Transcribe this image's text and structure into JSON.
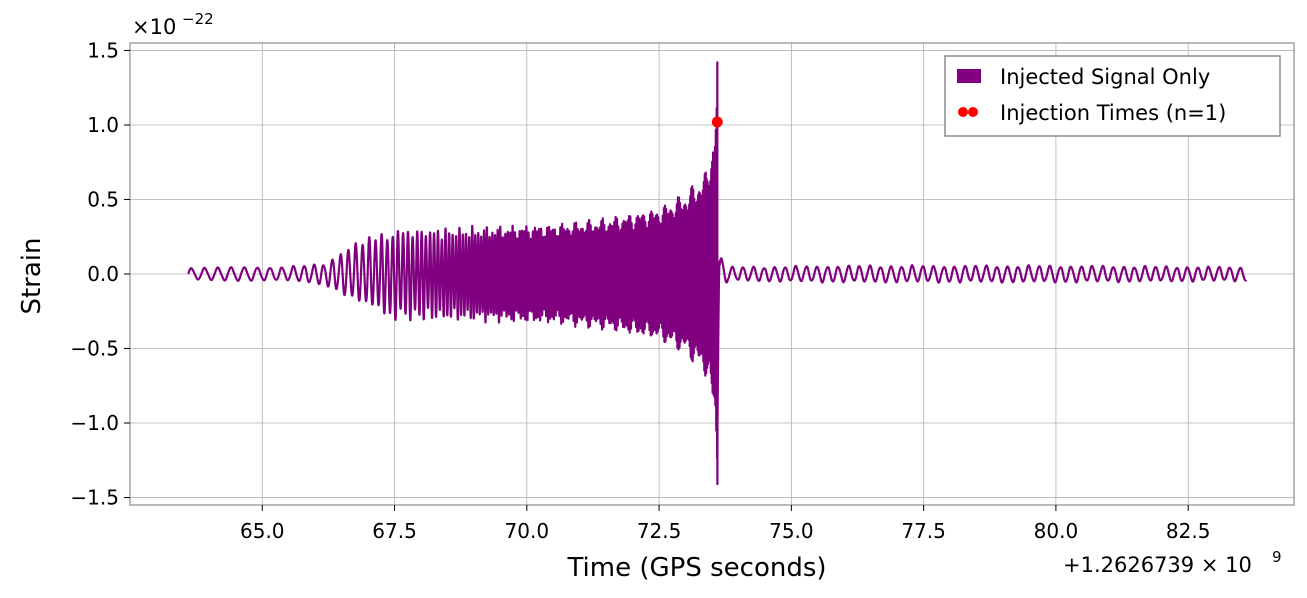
{
  "chart_data": {
    "type": "line",
    "xlabel": "Time (GPS seconds)",
    "ylabel": "Strain",
    "x_offset_label": "+1.2626739",
    "x_offset_mult": "× 10",
    "x_offset_exp": "9",
    "y_scale_label": "×10",
    "y_scale_exp": "−22",
    "xlim": [
      62.5,
      84.5
    ],
    "ylim": [
      -1.55,
      1.55
    ],
    "x_ticks": [
      65.0,
      67.5,
      70.0,
      72.5,
      75.0,
      77.5,
      80.0,
      82.5
    ],
    "x_tick_labels": [
      "65.0",
      "67.5",
      "70.0",
      "72.5",
      "75.0",
      "77.5",
      "80.0",
      "82.5"
    ],
    "y_ticks": [
      1.5,
      1.0,
      0.5,
      0.0,
      -0.5,
      -1.0,
      -1.5
    ],
    "y_tick_labels": [
      "1.5",
      "1.0",
      "0.5",
      "0.0",
      "−0.5",
      "−1.0",
      "−1.5"
    ],
    "grid": true,
    "legend_position": "top-right",
    "series": [
      {
        "name": "Injected Signal Only",
        "color": "#800080",
        "kind": "line",
        "x_start": 63.6,
        "x_end": 83.6,
        "peak_x": 73.6,
        "peak_max": 1.42,
        "peak_min": -1.41,
        "envelope": [
          {
            "x": 63.6,
            "amp": 0.04
          },
          {
            "x": 64.5,
            "amp": 0.05
          },
          {
            "x": 65.5,
            "amp": 0.05
          },
          {
            "x": 66.2,
            "amp": 0.08
          },
          {
            "x": 66.7,
            "amp": 0.2
          },
          {
            "x": 67.5,
            "amp": 0.32
          },
          {
            "x": 68.5,
            "amp": 0.32
          },
          {
            "x": 69.5,
            "amp": 0.33
          },
          {
            "x": 70.5,
            "amp": 0.34
          },
          {
            "x": 71.5,
            "amp": 0.38
          },
          {
            "x": 72.5,
            "amp": 0.45
          },
          {
            "x": 73.0,
            "amp": 0.55
          },
          {
            "x": 73.4,
            "amp": 0.7
          },
          {
            "x": 73.55,
            "amp": 1.0
          },
          {
            "x": 73.6,
            "amp": 1.42
          },
          {
            "x": 73.65,
            "amp": 0.15
          },
          {
            "x": 73.8,
            "amp": 0.05
          },
          {
            "x": 76.0,
            "amp": 0.06
          },
          {
            "x": 78.0,
            "amp": 0.06
          },
          {
            "x": 80.0,
            "amp": 0.06
          },
          {
            "x": 83.6,
            "amp": 0.05
          }
        ]
      },
      {
        "name": "Injection Times (n=1)",
        "color": "#ff0000",
        "kind": "scatter",
        "points": [
          {
            "x": 73.6,
            "y": 1.02
          }
        ]
      }
    ]
  }
}
